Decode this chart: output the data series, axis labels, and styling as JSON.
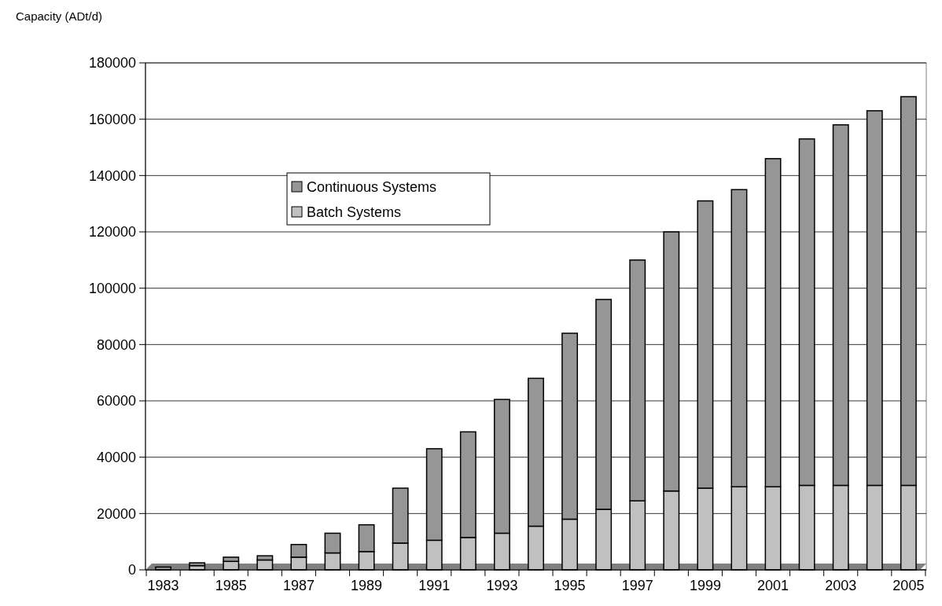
{
  "chart_data": {
    "type": "bar",
    "stacked": true,
    "ylabel": "Capacity (ADt/d)",
    "categories": [
      "1983",
      null,
      "1985",
      null,
      "1987",
      null,
      "1989",
      null,
      "1991",
      null,
      "1993",
      null,
      "1995",
      null,
      "1997",
      null,
      "1999",
      null,
      "2001",
      null,
      "2003",
      null,
      "2005"
    ],
    "series": [
      {
        "name": "Batch Systems",
        "color": "#c0c0c0",
        "values": [
          null,
          1500,
          3000,
          3500,
          4500,
          6000,
          6500,
          9500,
          10500,
          11500,
          13000,
          15500,
          18000,
          21500,
          24500,
          28000,
          29000,
          29500,
          29500,
          30000,
          30000,
          30000,
          30000
        ]
      },
      {
        "name": "Continuous Systems",
        "color": "#969696",
        "values": [
          1000,
          1000,
          1500,
          1500,
          4500,
          7000,
          9500,
          19500,
          32500,
          37500,
          47500,
          52500,
          66000,
          74500,
          85500,
          92000,
          102000,
          105500,
          116500,
          123000,
          128000,
          133000,
          138000
        ]
      }
    ],
    "ylim": [
      0,
      180000
    ],
    "yticks": [
      0,
      20000,
      40000,
      60000,
      80000,
      100000,
      120000,
      140000,
      160000,
      180000
    ],
    "grid": "y",
    "legend": "top left"
  }
}
